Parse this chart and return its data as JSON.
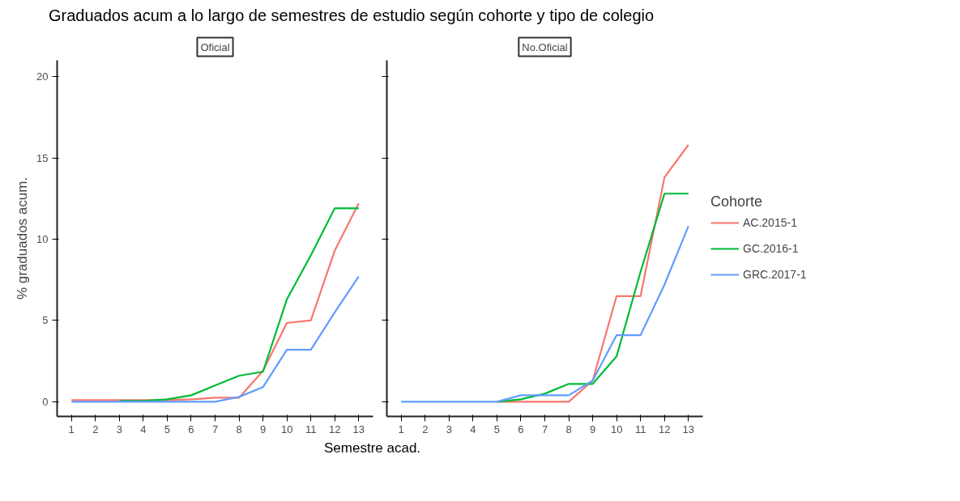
{
  "chart_data": [
    {
      "type": "line",
      "title": "Graduados acum a lo largo de semestres de estudio según cohorte y tipo de colegio",
      "subtitle": "Oficial",
      "xlabel": "Semestre acad.",
      "ylabel": "% graduados acum.",
      "x": [
        1,
        2,
        3,
        4,
        5,
        6,
        7,
        8,
        9,
        10,
        11,
        12,
        13
      ],
      "xlim": [
        0.4,
        13.6
      ],
      "xticks": [
        1,
        2,
        3,
        4,
        5,
        6,
        7,
        8,
        9,
        10,
        11,
        12,
        13
      ],
      "ylim": [
        -0.9,
        21
      ],
      "yticks": [
        0,
        5,
        10,
        15,
        20
      ],
      "grid": false,
      "series": [
        {
          "color": "#f8766d",
          "values": [
            0.1,
            0.1,
            0.1,
            0.1,
            0.1,
            0.15,
            0.25,
            0.25,
            1.9,
            4.85,
            5.0,
            9.3,
            12.2
          ]
        },
        {
          "color": "#00ba38",
          "values": [
            null,
            null,
            0.05,
            0.05,
            0.15,
            0.4,
            1.0,
            1.6,
            1.85,
            6.3,
            9.0,
            11.9,
            11.9
          ]
        },
        {
          "color": "#619cff",
          "values": [
            0,
            0,
            0,
            0,
            0,
            0,
            0,
            0.3,
            0.9,
            3.2,
            3.2,
            5.5,
            7.7
          ]
        }
      ]
    },
    {
      "type": "line",
      "subtitle": "No.Oficial",
      "legend_title": "Cohorte",
      "legend": "right",
      "tick_labels": "x",
      "x": [
        1,
        2,
        3,
        4,
        5,
        6,
        7,
        8,
        9,
        10,
        11,
        12,
        13
      ],
      "xlim": [
        0.4,
        13.6
      ],
      "xticks": [
        1,
        2,
        3,
        4,
        5,
        6,
        7,
        8,
        9,
        10,
        11,
        12,
        13
      ],
      "ylim": [
        -0.9,
        21
      ],
      "yticks": [
        0,
        5,
        10,
        15,
        20
      ],
      "grid": false,
      "series": [
        {
          "name": "AC.2015-1",
          "color": "#f8766d",
          "values": [
            null,
            null,
            null,
            null,
            0,
            0,
            0,
            0,
            1.3,
            6.5,
            6.5,
            13.8,
            15.8
          ]
        },
        {
          "name": "GC.2016-1",
          "color": "#00ba38",
          "values": [
            null,
            null,
            null,
            null,
            0,
            0.15,
            0.5,
            1.1,
            1.1,
            2.8,
            8.0,
            12.8,
            12.8
          ]
        },
        {
          "name": "GRC.2017-1",
          "color": "#619cff",
          "values": [
            0,
            0,
            0,
            0,
            0,
            0.4,
            0.4,
            0.4,
            1.3,
            4.1,
            4.1,
            7.2,
            10.8
          ]
        }
      ]
    }
  ]
}
